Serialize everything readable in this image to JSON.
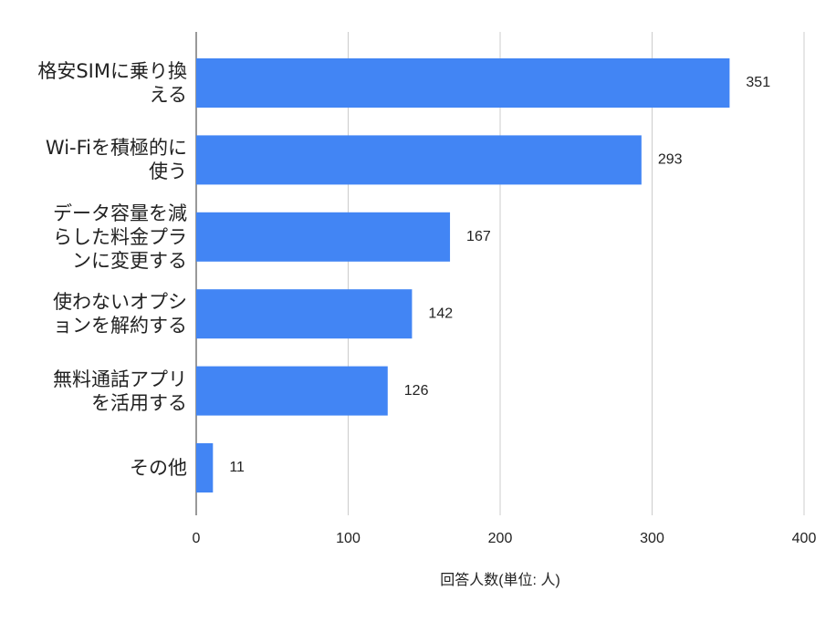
{
  "chart_data": {
    "type": "bar",
    "orientation": "horizontal",
    "categories": [
      "格安SIMに乗り換える",
      "Wi-Fiを積極的に使う",
      "データ容量を減らした料金プランに変更する",
      "使わないオプションを解約する",
      "無料通話アプリを活用する",
      "その他"
    ],
    "values": [
      351,
      293,
      167,
      142,
      126,
      11
    ],
    "color": "#4285f4",
    "xlabel": "回答人数(単位: 人)",
    "xlim": [
      0,
      400
    ],
    "xticks": [
      0,
      100,
      200,
      300,
      400
    ],
    "grid": true
  }
}
